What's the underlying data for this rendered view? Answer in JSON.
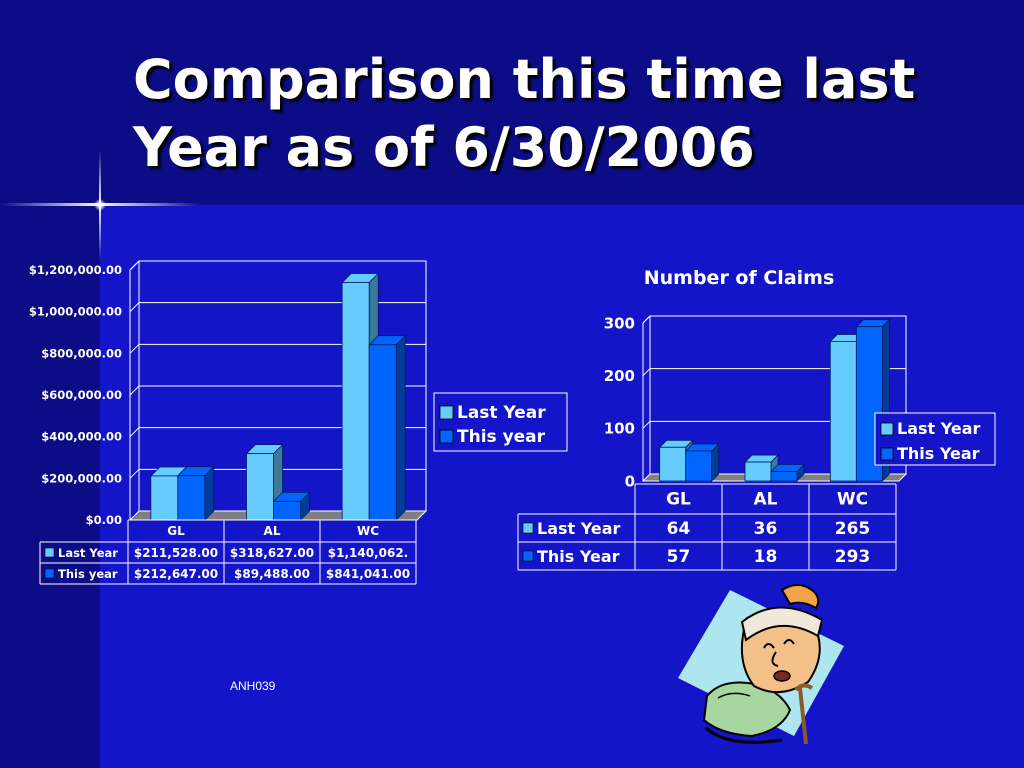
{
  "slide": {
    "title_line1": "Comparison this time last",
    "title_line2": "Year as of 6/30/2006",
    "footer_code": "ANH039"
  },
  "chart_data": [
    {
      "type": "bar",
      "title": "",
      "categories": [
        "GL",
        "AL",
        "WC"
      ],
      "series": [
        {
          "name": "Last Year",
          "values": [
            211528,
            318627,
            1140062
          ],
          "display": [
            "$211,528.00",
            "$318,627.00",
            "$1,140,062."
          ],
          "color": "#66ccff"
        },
        {
          "name": "This year",
          "values": [
            212647,
            89488,
            841041
          ],
          "display": [
            "$212,647.00",
            "$89,488.00",
            "$841,041.00"
          ],
          "color": "#0066ff"
        }
      ],
      "ylim": [
        0,
        1200000
      ],
      "yticks": [
        0,
        200000,
        400000,
        600000,
        800000,
        1000000,
        1200000
      ],
      "ytick_labels": [
        "$0.00",
        "$200,000.00",
        "$400,000.00",
        "$600,000.00",
        "$800,000.00",
        "$1,000,000.00",
        "$1,200,000.00"
      ],
      "legend_position": "right",
      "data_table": true
    },
    {
      "type": "bar",
      "title": "Number of Claims",
      "categories": [
        "GL",
        "AL",
        "WC"
      ],
      "series": [
        {
          "name": "Last Year",
          "values": [
            64,
            36,
            265
          ],
          "color": "#66ccff"
        },
        {
          "name": "This Year",
          "values": [
            57,
            18,
            293
          ],
          "color": "#0066ff"
        }
      ],
      "ylim": [
        0,
        300
      ],
      "yticks": [
        0,
        100,
        200,
        300
      ],
      "ytick_labels": [
        "0",
        "100",
        "200",
        "300"
      ],
      "legend_position": "right",
      "data_table": true
    }
  ],
  "clipart": {
    "icon": "injured-man-with-cane-clipart"
  }
}
